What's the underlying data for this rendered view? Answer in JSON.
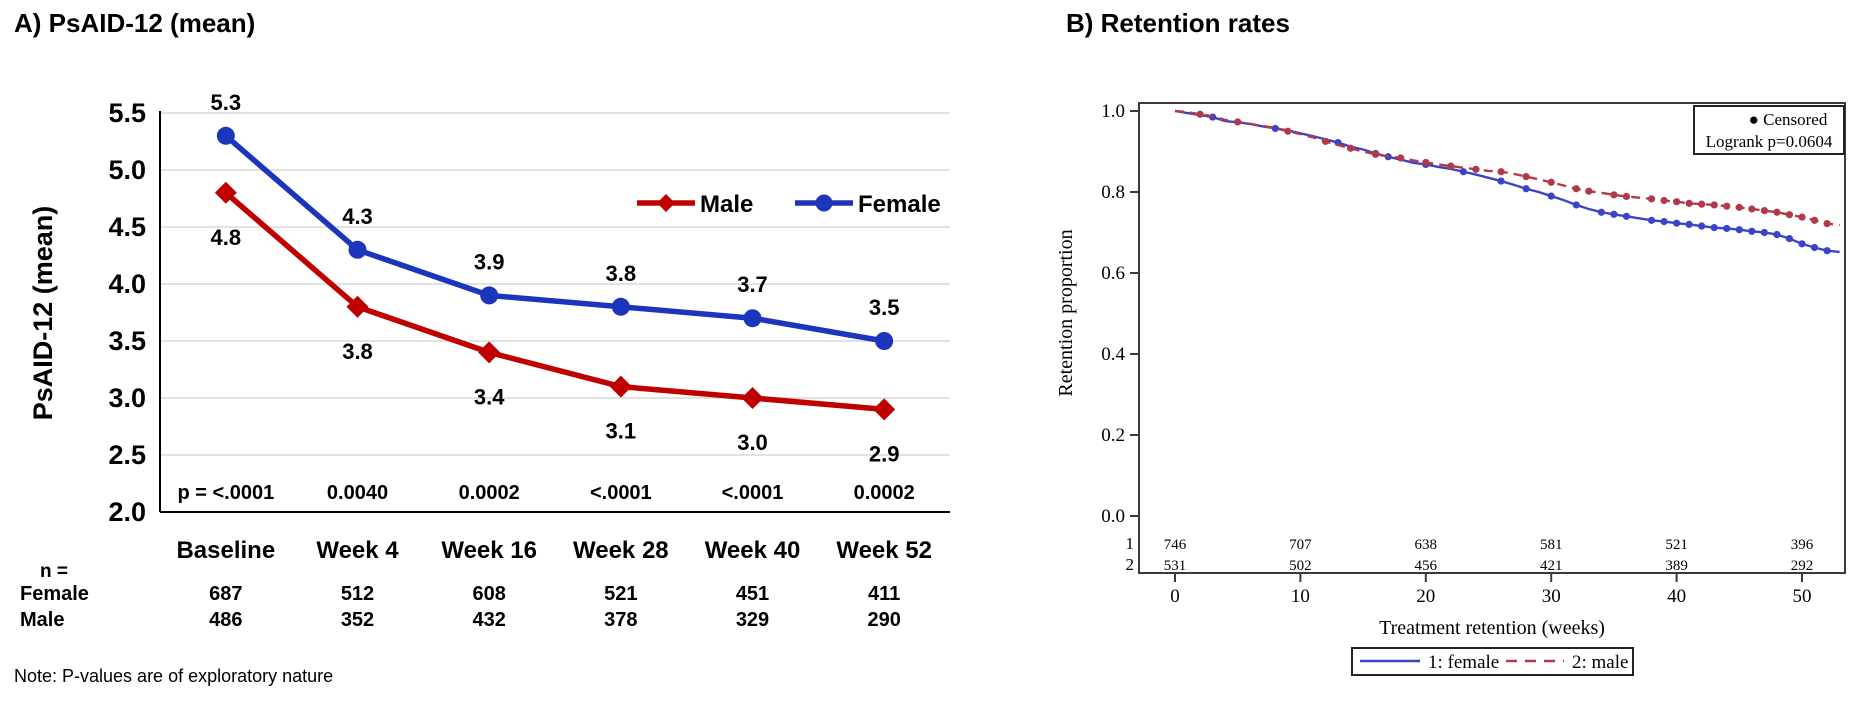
{
  "chart_data": [
    {
      "id": "psaid",
      "type": "line",
      "title": "A) PsAID-12 (mean)",
      "ylabel": "PsAID-12 (mean)",
      "xlabel": "",
      "ylim": [
        2.0,
        5.5
      ],
      "grid": true,
      "grid_color": "#d9d9d9",
      "y_ticks": [
        "5.5",
        "5.0",
        "4.5",
        "4.0",
        "3.5",
        "3.0",
        "2.5",
        "2.0"
      ],
      "categories": [
        "Baseline",
        "Week 4",
        "Week 16",
        "Week 28",
        "Week 40",
        "Week 52"
      ],
      "series": [
        {
          "name": "Male",
          "color": "#c00000",
          "marker": "diamond",
          "style": "solid",
          "values": [
            4.8,
            3.8,
            3.4,
            3.1,
            3.0,
            2.9
          ],
          "labels": [
            "4.8",
            "3.8",
            "3.4",
            "3.1",
            "3.0",
            "2.9"
          ]
        },
        {
          "name": "Female",
          "color": "#1c35bd",
          "marker": "circle",
          "style": "solid",
          "values": [
            5.3,
            4.3,
            3.9,
            3.8,
            3.7,
            3.5
          ],
          "labels": [
            "5.3",
            "4.3",
            "3.9",
            "3.8",
            "3.7",
            "3.5"
          ]
        }
      ],
      "legend_position": "inside-top-right",
      "p_values": [
        "p = <.0001",
        "0.0040",
        "0.0002",
        "<.0001",
        "<.0001",
        "0.0002"
      ],
      "n_table": {
        "label": "n =",
        "rows": [
          {
            "name": "Female",
            "color": "#1c35bd",
            "values": [
              "687",
              "512",
              "608",
              "521",
              "451",
              "411"
            ]
          },
          {
            "name": "Male",
            "color": "#c00000",
            "values": [
              "486",
              "352",
              "432",
              "378",
              "329",
              "290"
            ]
          }
        ]
      },
      "note": "Note: P-values are of exploratory nature"
    },
    {
      "id": "retention",
      "type": "line",
      "title": "B) Retention rates",
      "ylabel": "Retention proportion",
      "xlabel": "Treatment retention (weeks)",
      "xlim": [
        0,
        53
      ],
      "ylim": [
        0.0,
        1.0
      ],
      "grid": false,
      "y_ticks": [
        "1.0",
        "0.8",
        "0.6",
        "0.4",
        "0.2",
        "0.0"
      ],
      "x_ticks": [
        "0",
        "10",
        "20",
        "30",
        "40",
        "50"
      ],
      "annotation_box": {
        "bullet": "●",
        "line1": "Censored",
        "line2": "Logrank p=0.0604"
      },
      "series": [
        {
          "name": "1: female",
          "color": "#3b44c8",
          "style": "solid",
          "points": [
            [
              0,
              1.0
            ],
            [
              1,
              0.995
            ],
            [
              2,
              0.99
            ],
            [
              3,
              0.985
            ],
            [
              4,
              0.975
            ],
            [
              5,
              0.972
            ],
            [
              6,
              0.968
            ],
            [
              7,
              0.962
            ],
            [
              8,
              0.957
            ],
            [
              9,
              0.952
            ],
            [
              10,
              0.945
            ],
            [
              11,
              0.938
            ],
            [
              12,
              0.93
            ],
            [
              13,
              0.922
            ],
            [
              14,
              0.912
            ],
            [
              15,
              0.905
            ],
            [
              16,
              0.895
            ],
            [
              17,
              0.887
            ],
            [
              18,
              0.88
            ],
            [
              19,
              0.872
            ],
            [
              20,
              0.868
            ],
            [
              21,
              0.862
            ],
            [
              22,
              0.857
            ],
            [
              23,
              0.85
            ],
            [
              24,
              0.843
            ],
            [
              25,
              0.835
            ],
            [
              26,
              0.827
            ],
            [
              27,
              0.818
            ],
            [
              28,
              0.808
            ],
            [
              29,
              0.8
            ],
            [
              30,
              0.79
            ],
            [
              31,
              0.78
            ],
            [
              32,
              0.768
            ],
            [
              33,
              0.758
            ],
            [
              34,
              0.75
            ],
            [
              35,
              0.745
            ],
            [
              36,
              0.74
            ],
            [
              37,
              0.735
            ],
            [
              38,
              0.73
            ],
            [
              39,
              0.727
            ],
            [
              40,
              0.723
            ],
            [
              41,
              0.72
            ],
            [
              42,
              0.716
            ],
            [
              43,
              0.712
            ],
            [
              44,
              0.71
            ],
            [
              45,
              0.707
            ],
            [
              46,
              0.703
            ],
            [
              47,
              0.7
            ],
            [
              48,
              0.695
            ],
            [
              49,
              0.685
            ],
            [
              50,
              0.672
            ],
            [
              51,
              0.663
            ],
            [
              52,
              0.655
            ],
            [
              53,
              0.652
            ]
          ],
          "censor_points": [
            [
              3,
              0.985
            ],
            [
              8,
              0.957
            ],
            [
              13,
              0.922
            ],
            [
              16,
              0.895
            ],
            [
              17,
              0.887
            ],
            [
              20,
              0.868
            ],
            [
              23,
              0.85
            ],
            [
              26,
              0.827
            ],
            [
              28,
              0.808
            ],
            [
              30,
              0.79
            ],
            [
              32,
              0.768
            ],
            [
              34,
              0.75
            ],
            [
              35,
              0.745
            ],
            [
              36,
              0.74
            ],
            [
              38,
              0.73
            ],
            [
              39,
              0.727
            ],
            [
              40,
              0.723
            ],
            [
              41,
              0.72
            ],
            [
              42,
              0.716
            ],
            [
              43,
              0.712
            ],
            [
              44,
              0.71
            ],
            [
              45,
              0.707
            ],
            [
              46,
              0.703
            ],
            [
              47,
              0.7
            ],
            [
              48,
              0.695
            ],
            [
              49,
              0.685
            ],
            [
              50,
              0.672
            ],
            [
              51,
              0.663
            ],
            [
              52,
              0.655
            ]
          ]
        },
        {
          "name": "2: male",
          "color": "#b23a48",
          "style": "dashed",
          "points": [
            [
              0,
              1.0
            ],
            [
              1,
              0.997
            ],
            [
              2,
              0.992
            ],
            [
              3,
              0.987
            ],
            [
              4,
              0.978
            ],
            [
              5,
              0.973
            ],
            [
              6,
              0.968
            ],
            [
              7,
              0.963
            ],
            [
              8,
              0.958
            ],
            [
              9,
              0.95
            ],
            [
              10,
              0.943
            ],
            [
              11,
              0.935
            ],
            [
              12,
              0.925
            ],
            [
              13,
              0.916
            ],
            [
              14,
              0.908
            ],
            [
              15,
              0.9
            ],
            [
              16,
              0.893
            ],
            [
              17,
              0.888
            ],
            [
              18,
              0.884
            ],
            [
              19,
              0.878
            ],
            [
              20,
              0.873
            ],
            [
              21,
              0.868
            ],
            [
              22,
              0.864
            ],
            [
              23,
              0.86
            ],
            [
              24,
              0.856
            ],
            [
              25,
              0.852
            ],
            [
              26,
              0.85
            ],
            [
              27,
              0.845
            ],
            [
              28,
              0.838
            ],
            [
              29,
              0.831
            ],
            [
              30,
              0.824
            ],
            [
              31,
              0.816
            ],
            [
              32,
              0.808
            ],
            [
              33,
              0.802
            ],
            [
              34,
              0.798
            ],
            [
              35,
              0.793
            ],
            [
              36,
              0.789
            ],
            [
              37,
              0.786
            ],
            [
              38,
              0.783
            ],
            [
              39,
              0.779
            ],
            [
              40,
              0.776
            ],
            [
              41,
              0.772
            ],
            [
              42,
              0.77
            ],
            [
              43,
              0.768
            ],
            [
              44,
              0.765
            ],
            [
              45,
              0.762
            ],
            [
              46,
              0.758
            ],
            [
              47,
              0.754
            ],
            [
              48,
              0.75
            ],
            [
              49,
              0.744
            ],
            [
              50,
              0.738
            ],
            [
              51,
              0.73
            ],
            [
              52,
              0.722
            ],
            [
              53,
              0.718
            ]
          ],
          "censor_points": [
            [
              2,
              0.992
            ],
            [
              5,
              0.973
            ],
            [
              9,
              0.95
            ],
            [
              12,
              0.925
            ],
            [
              14,
              0.908
            ],
            [
              16,
              0.893
            ],
            [
              18,
              0.884
            ],
            [
              20,
              0.873
            ],
            [
              22,
              0.864
            ],
            [
              24,
              0.856
            ],
            [
              26,
              0.85
            ],
            [
              28,
              0.838
            ],
            [
              30,
              0.824
            ],
            [
              32,
              0.808
            ],
            [
              33,
              0.802
            ],
            [
              35,
              0.793
            ],
            [
              36,
              0.789
            ],
            [
              38,
              0.783
            ],
            [
              39,
              0.779
            ],
            [
              40,
              0.776
            ],
            [
              41,
              0.772
            ],
            [
              42,
              0.77
            ],
            [
              43,
              0.768
            ],
            [
              44,
              0.765
            ],
            [
              45,
              0.762
            ],
            [
              46,
              0.758
            ],
            [
              47,
              0.754
            ],
            [
              48,
              0.75
            ],
            [
              49,
              0.744
            ],
            [
              50,
              0.738
            ],
            [
              51,
              0.73
            ],
            [
              52,
              0.722
            ]
          ]
        }
      ],
      "legend_position": "below",
      "at_risk_table": {
        "rows": [
          {
            "label": "1",
            "values": [
              "746",
              "707",
              "638",
              "581",
              "521",
              "396"
            ]
          },
          {
            "label": "2",
            "values": [
              "531",
              "502",
              "456",
              "421",
              "389",
              "292"
            ]
          }
        ]
      }
    }
  ]
}
